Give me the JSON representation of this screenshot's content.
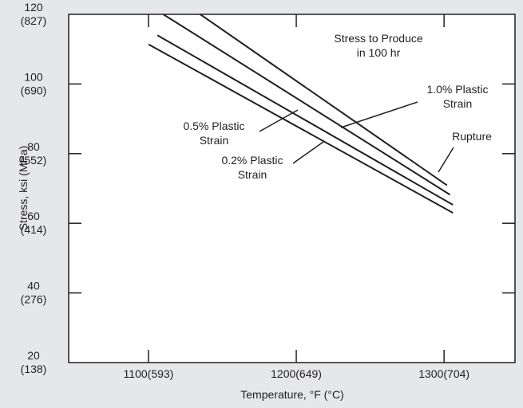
{
  "chart_data": {
    "type": "line",
    "title": "",
    "xlabel": "Temperature, °F (°C)",
    "ylabel": "Stress, ksi (MPa)",
    "xlim": [
      1046,
      1348
    ],
    "ylim": [
      20,
      120
    ],
    "grid": false,
    "x_ticks": [
      {
        "value": 1100,
        "label": "1100(593)"
      },
      {
        "value": 1200,
        "label": "1200(649)"
      },
      {
        "value": 1300,
        "label": "1300(704)"
      }
    ],
    "y_ticks": [
      {
        "value": 20,
        "label": "20",
        "label2": "(138)"
      },
      {
        "value": 40,
        "label": "40",
        "label2": "(276)"
      },
      {
        "value": 60,
        "label": "60",
        "label2": "(414)"
      },
      {
        "value": 80,
        "label": "80",
        "label2": "(552)"
      },
      {
        "value": 100,
        "label": "100",
        "label2": "(690)"
      },
      {
        "value": 120,
        "label": "120",
        "label2": "(827)"
      }
    ],
    "series": [
      {
        "name": "Rupture",
        "x": [
          1135,
          1302
        ],
        "y": [
          120,
          70.9
        ]
      },
      {
        "name": "1.0% Plastic Strain",
        "x": [
          1110,
          1304
        ],
        "y": [
          120,
          68.2
        ]
      },
      {
        "name": "0.5% Plastic Strain",
        "x": [
          1106,
          1306
        ],
        "y": [
          114,
          65.3
        ]
      },
      {
        "name": "0.2% Plastic Strain",
        "x": [
          1100,
          1306
        ],
        "y": [
          111.4,
          63
        ]
      }
    ],
    "annotations": [
      {
        "name": "header",
        "lines": [
          "Stress to Produce",
          "in 100 hr"
        ]
      },
      {
        "name": "rupture",
        "lines": [
          "Rupture"
        ]
      },
      {
        "name": "strain-1-0",
        "lines": [
          "1.0% Plastic",
          "Strain"
        ]
      },
      {
        "name": "strain-0-5",
        "lines": [
          "0.5% Plastic",
          "Strain"
        ]
      },
      {
        "name": "strain-0-2",
        "lines": [
          "0.2% Plastic",
          "Strain"
        ]
      }
    ]
  }
}
